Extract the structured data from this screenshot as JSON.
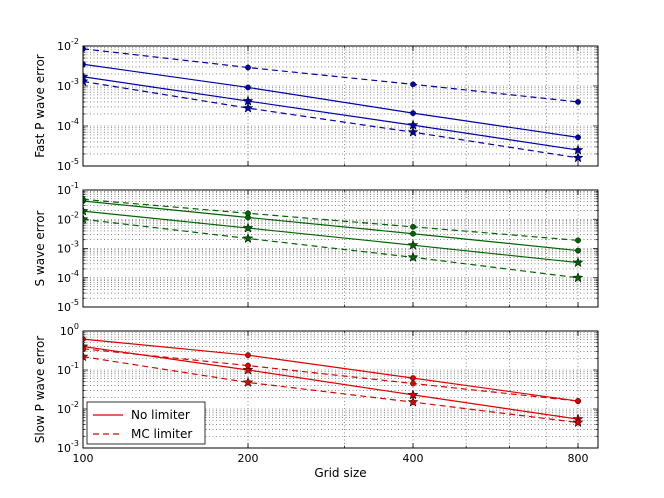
{
  "chart_data": [
    {
      "type": "line",
      "ylabel": "Fast P wave error",
      "x_scale": "log",
      "y_scale": "log",
      "xlim": [
        100,
        870
      ],
      "ylim": [
        1e-05,
        0.01
      ],
      "ytick_labels": [
        {
          "value": 1e-05,
          "base": "10",
          "exp": "-5"
        },
        {
          "value": 0.0001,
          "base": "10",
          "exp": "-4"
        },
        {
          "value": 0.001,
          "base": "10",
          "exp": "-3"
        },
        {
          "value": 0.01,
          "base": "10",
          "exp": "-2"
        }
      ],
      "color": "#0000aa",
      "series": [
        {
          "name": "No limiter, circle",
          "linestyle": "solid",
          "marker": "circle",
          "x": [
            100,
            200,
            400,
            800
          ],
          "y": [
            0.0035,
            0.00092,
            0.00021,
            5.2e-05
          ]
        },
        {
          "name": "No limiter, star",
          "linestyle": "solid",
          "marker": "star",
          "x": [
            100,
            200,
            400,
            800
          ],
          "y": [
            0.0017,
            0.00042,
            0.000105,
            2.5e-05
          ]
        },
        {
          "name": "MC limiter, circle",
          "linestyle": "dashed",
          "marker": "circle",
          "x": [
            100,
            200,
            400,
            800
          ],
          "y": [
            0.0085,
            0.0029,
            0.0011,
            0.0004
          ]
        },
        {
          "name": "MC limiter, star",
          "linestyle": "dashed",
          "marker": "star",
          "x": [
            100,
            200,
            400,
            800
          ],
          "y": [
            0.0013,
            0.00028,
            7e-05,
            1.6e-05
          ]
        }
      ]
    },
    {
      "type": "line",
      "ylabel": "S wave error",
      "x_scale": "log",
      "y_scale": "log",
      "xlim": [
        100,
        870
      ],
      "ylim": [
        1e-05,
        0.1
      ],
      "ytick_labels": [
        {
          "value": 1e-05,
          "base": "10",
          "exp": "-5"
        },
        {
          "value": 0.0001,
          "base": "10",
          "exp": "-4"
        },
        {
          "value": 0.001,
          "base": "10",
          "exp": "-3"
        },
        {
          "value": 0.01,
          "base": "10",
          "exp": "-2"
        },
        {
          "value": 0.1,
          "base": "10",
          "exp": "-1"
        }
      ],
      "color": "#006400",
      "series": [
        {
          "name": "No limiter, circle",
          "linestyle": "solid",
          "marker": "circle",
          "x": [
            100,
            200,
            400,
            800
          ],
          "y": [
            0.042,
            0.0115,
            0.0032,
            0.00085
          ]
        },
        {
          "name": "No limiter, star",
          "linestyle": "solid",
          "marker": "star",
          "x": [
            100,
            200,
            400,
            800
          ],
          "y": [
            0.019,
            0.005,
            0.0013,
            0.00033
          ]
        },
        {
          "name": "MC limiter, circle",
          "linestyle": "dashed",
          "marker": "circle",
          "x": [
            100,
            200,
            400,
            800
          ],
          "y": [
            0.048,
            0.016,
            0.0055,
            0.0019
          ]
        },
        {
          "name": "MC limiter, star",
          "linestyle": "dashed",
          "marker": "star",
          "x": [
            100,
            200,
            400,
            800
          ],
          "y": [
            0.01,
            0.0022,
            0.0005,
            0.0001
          ]
        }
      ]
    },
    {
      "type": "line",
      "ylabel": "Slow P wave error",
      "xlabel": "Grid size",
      "x_scale": "log",
      "y_scale": "log",
      "xlim": [
        100,
        870
      ],
      "ylim": [
        0.001,
        1
      ],
      "xtick_labels": [
        {
          "value": 100,
          "label": "100"
        },
        {
          "value": 200,
          "label": "200"
        },
        {
          "value": 400,
          "label": "400"
        },
        {
          "value": 800,
          "label": "800"
        }
      ],
      "ytick_labels": [
        {
          "value": 0.001,
          "base": "10",
          "exp": "-3"
        },
        {
          "value": 0.01,
          "base": "10",
          "exp": "-2"
        },
        {
          "value": 0.1,
          "base": "10",
          "exp": "-1"
        },
        {
          "value": 1,
          "base": "10",
          "exp": "0"
        }
      ],
      "color": "#dd0000",
      "series": [
        {
          "name": "No limiter, circle",
          "linestyle": "solid",
          "marker": "circle",
          "x": [
            100,
            200,
            400,
            800
          ],
          "y": [
            0.62,
            0.24,
            0.062,
            0.016
          ]
        },
        {
          "name": "No limiter, star",
          "linestyle": "solid",
          "marker": "star",
          "x": [
            100,
            200,
            400,
            800
          ],
          "y": [
            0.4,
            0.1,
            0.023,
            0.0055
          ]
        },
        {
          "name": "MC limiter, circle",
          "linestyle": "dashed",
          "marker": "circle",
          "x": [
            100,
            200,
            400,
            800
          ],
          "y": [
            0.35,
            0.13,
            0.045,
            0.016
          ]
        },
        {
          "name": "MC limiter, star",
          "linestyle": "dashed",
          "marker": "star",
          "x": [
            100,
            200,
            400,
            800
          ],
          "y": [
            0.22,
            0.048,
            0.015,
            0.0045
          ]
        }
      ],
      "legend": {
        "position": "lower-left",
        "entries": [
          {
            "label": "No limiter",
            "linestyle": "solid",
            "color": "#dd0000"
          },
          {
            "label": "MC limiter",
            "linestyle": "dashed",
            "color": "#dd0000"
          }
        ]
      }
    }
  ]
}
